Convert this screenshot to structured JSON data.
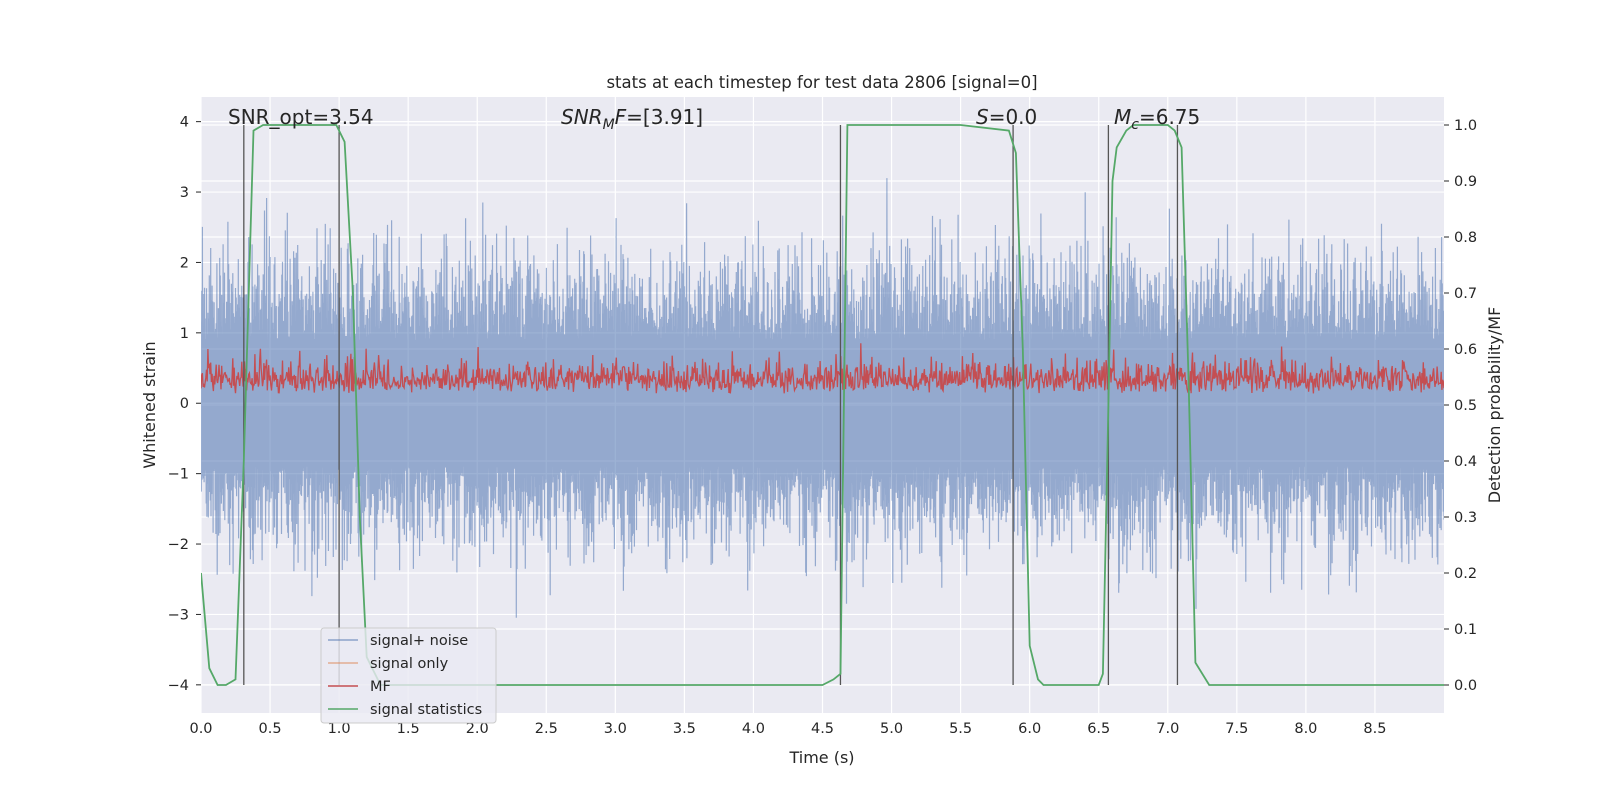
{
  "chart_data": {
    "type": "line",
    "title": "stats at each timestep for test data 2806 [signal=0]",
    "xlabel": "Time (s)",
    "ylabel": "Whitened strain",
    "y2label": "Detection probability/MF",
    "xlim": [
      0,
      9.0
    ],
    "ylim": [
      -4.4,
      4.35
    ],
    "y2lim": [
      -0.05,
      1.05
    ],
    "xticks": [
      "0.0",
      "0.5",
      "1.0",
      "1.5",
      "2.0",
      "2.5",
      "3.0",
      "3.5",
      "4.0",
      "4.5",
      "5.0",
      "5.5",
      "6.0",
      "6.5",
      "7.0",
      "7.5",
      "8.0",
      "8.5"
    ],
    "yticks": [
      "−4",
      "−3",
      "−2",
      "−1",
      "0",
      "1",
      "2",
      "3",
      "4"
    ],
    "y2ticks": [
      "0.0",
      "0.1",
      "0.2",
      "0.3",
      "0.4",
      "0.5",
      "0.6",
      "0.7",
      "0.8",
      "0.9",
      "1.0"
    ],
    "grid": true,
    "legend_position": "lower-left",
    "annotations": {
      "snr_opt": "SNR_opt=3.54",
      "snr_mf_main": "SNR",
      "snr_mf_sub": "M",
      "snr_mf_main2": "F",
      "snr_mf_value": "=[3.91]",
      "s_main": "S",
      "s_value": "=0.0",
      "mc_main": "M",
      "mc_sub": "c",
      "mc_value": "=6.75"
    },
    "vertical_lines_x": [
      0.31,
      1.0,
      4.63,
      5.88,
      6.57,
      7.07
    ],
    "series": [
      {
        "name": "signal+ noise",
        "color": "#4c72b0",
        "style": "noise",
        "amplitude_envelope": [
          -4.0,
          4.0
        ],
        "note_range_values": [
          -4.0,
          4.0
        ]
      },
      {
        "name": "signal only",
        "color": "#dd8452",
        "values": []
      },
      {
        "name": "MF",
        "color": "#c44e52",
        "axis": "right",
        "band": [
          0.5,
          0.6
        ]
      },
      {
        "name": "signal statistics",
        "color": "#55a868",
        "axis": "right",
        "x": [
          0.0,
          0.06,
          0.12,
          0.18,
          0.25,
          0.31,
          0.38,
          0.45,
          0.6,
          0.8,
          0.98,
          1.04,
          1.1,
          1.15,
          1.2,
          1.3,
          2.0,
          3.0,
          4.0,
          4.5,
          4.58,
          4.63,
          4.68,
          4.75,
          5.0,
          5.5,
          5.85,
          5.9,
          5.95,
          6.0,
          6.06,
          6.1,
          6.2,
          6.5,
          6.53,
          6.57,
          6.6,
          6.63,
          6.7,
          6.75,
          7.0,
          7.05,
          7.1,
          7.15,
          7.2,
          7.3,
          8.0,
          9.0
        ],
        "values": [
          0.2,
          0.03,
          0.0,
          0.0,
          0.01,
          0.4,
          0.99,
          1.0,
          1.0,
          1.0,
          1.0,
          0.97,
          0.7,
          0.3,
          0.05,
          0.0,
          0.0,
          0.0,
          0.0,
          0.0,
          0.01,
          0.02,
          1.0,
          1.0,
          1.0,
          1.0,
          0.99,
          0.95,
          0.6,
          0.07,
          0.01,
          0.0,
          0.0,
          0.0,
          0.02,
          0.5,
          0.9,
          0.96,
          0.99,
          1.0,
          1.0,
          0.99,
          0.96,
          0.55,
          0.04,
          0.0,
          0.0,
          0.0
        ]
      }
    ]
  }
}
